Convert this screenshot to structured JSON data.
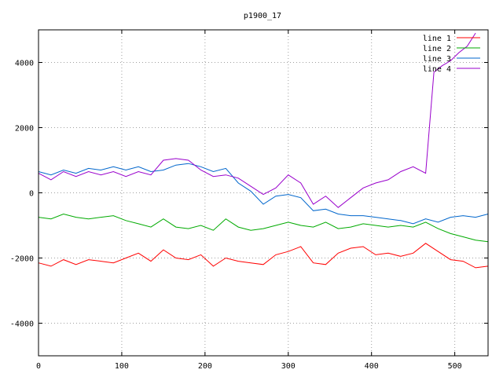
{
  "chart_data": {
    "type": "line",
    "title": "p1900_17",
    "xlabel": "",
    "ylabel": "",
    "xlim": [
      0,
      540
    ],
    "ylim": [
      -5000,
      5000
    ],
    "xticks": [
      0,
      100,
      200,
      300,
      400,
      500
    ],
    "yticks": [
      -4000,
      -2000,
      0,
      2000,
      4000
    ],
    "grid": true,
    "legend_position": "top-right",
    "series": [
      {
        "name": "line 1",
        "color": "#ff0000",
        "x": [
          0,
          15,
          30,
          45,
          60,
          75,
          90,
          105,
          120,
          135,
          150,
          165,
          180,
          195,
          210,
          225,
          240,
          255,
          270,
          285,
          300,
          315,
          330,
          345,
          360,
          375,
          390,
          405,
          420,
          435,
          450,
          465,
          480,
          495,
          510,
          525,
          540
        ],
        "values": [
          -2150,
          -2250,
          -2050,
          -2200,
          -2050,
          -2100,
          -2150,
          -2000,
          -1850,
          -2100,
          -1750,
          -2000,
          -2050,
          -1900,
          -2250,
          -2000,
          -2100,
          -2150,
          -2200,
          -1900,
          -1800,
          -1650,
          -2150,
          -2200,
          -1850,
          -1700,
          -1650,
          -1900,
          -1850,
          -1950,
          -1850,
          -1550,
          -1800,
          -2050,
          -2100,
          -2300,
          -2250
        ]
      },
      {
        "name": "line 2",
        "color": "#00aa00",
        "x": [
          0,
          15,
          30,
          45,
          60,
          75,
          90,
          105,
          120,
          135,
          150,
          165,
          180,
          195,
          210,
          225,
          240,
          255,
          270,
          285,
          300,
          315,
          330,
          345,
          360,
          375,
          390,
          405,
          420,
          435,
          450,
          465,
          480,
          495,
          510,
          525,
          540
        ],
        "values": [
          -750,
          -800,
          -650,
          -750,
          -800,
          -750,
          -700,
          -850,
          -950,
          -1050,
          -800,
          -1050,
          -1100,
          -1000,
          -1150,
          -800,
          -1050,
          -1150,
          -1100,
          -1000,
          -900,
          -1000,
          -1050,
          -900,
          -1100,
          -1050,
          -950,
          -1000,
          -1050,
          -1000,
          -1050,
          -900,
          -1100,
          -1250,
          -1350,
          -1450,
          -1500
        ]
      },
      {
        "name": "line 3",
        "color": "#0066cc",
        "x": [
          0,
          15,
          30,
          45,
          60,
          75,
          90,
          105,
          120,
          135,
          150,
          165,
          180,
          195,
          210,
          225,
          240,
          255,
          270,
          285,
          300,
          315,
          330,
          345,
          360,
          375,
          390,
          405,
          420,
          435,
          450,
          465,
          480,
          495,
          510,
          525,
          540
        ],
        "values": [
          650,
          550,
          700,
          600,
          750,
          700,
          800,
          700,
          800,
          650,
          700,
          850,
          900,
          800,
          650,
          750,
          300,
          50,
          -350,
          -100,
          -50,
          -150,
          -550,
          -500,
          -650,
          -700,
          -700,
          -750,
          -800,
          -850,
          -950,
          -800,
          -900,
          -750,
          -700,
          -750,
          -650
        ]
      },
      {
        "name": "line 4",
        "color": "#9900cc",
        "x": [
          0,
          15,
          30,
          45,
          60,
          75,
          90,
          105,
          120,
          135,
          150,
          165,
          180,
          195,
          210,
          225,
          240,
          255,
          270,
          285,
          300,
          315,
          330,
          345,
          360,
          375,
          390,
          405,
          420,
          435,
          450,
          465,
          475,
          485,
          495,
          505,
          515,
          525
        ],
        "values": [
          600,
          400,
          650,
          500,
          650,
          550,
          650,
          500,
          650,
          550,
          1000,
          1050,
          1000,
          700,
          500,
          550,
          450,
          200,
          -50,
          150,
          550,
          300,
          -350,
          -100,
          -450,
          -150,
          150,
          300,
          400,
          650,
          800,
          600,
          3700,
          3900,
          4050,
          4300,
          4500,
          4900
        ]
      }
    ]
  }
}
